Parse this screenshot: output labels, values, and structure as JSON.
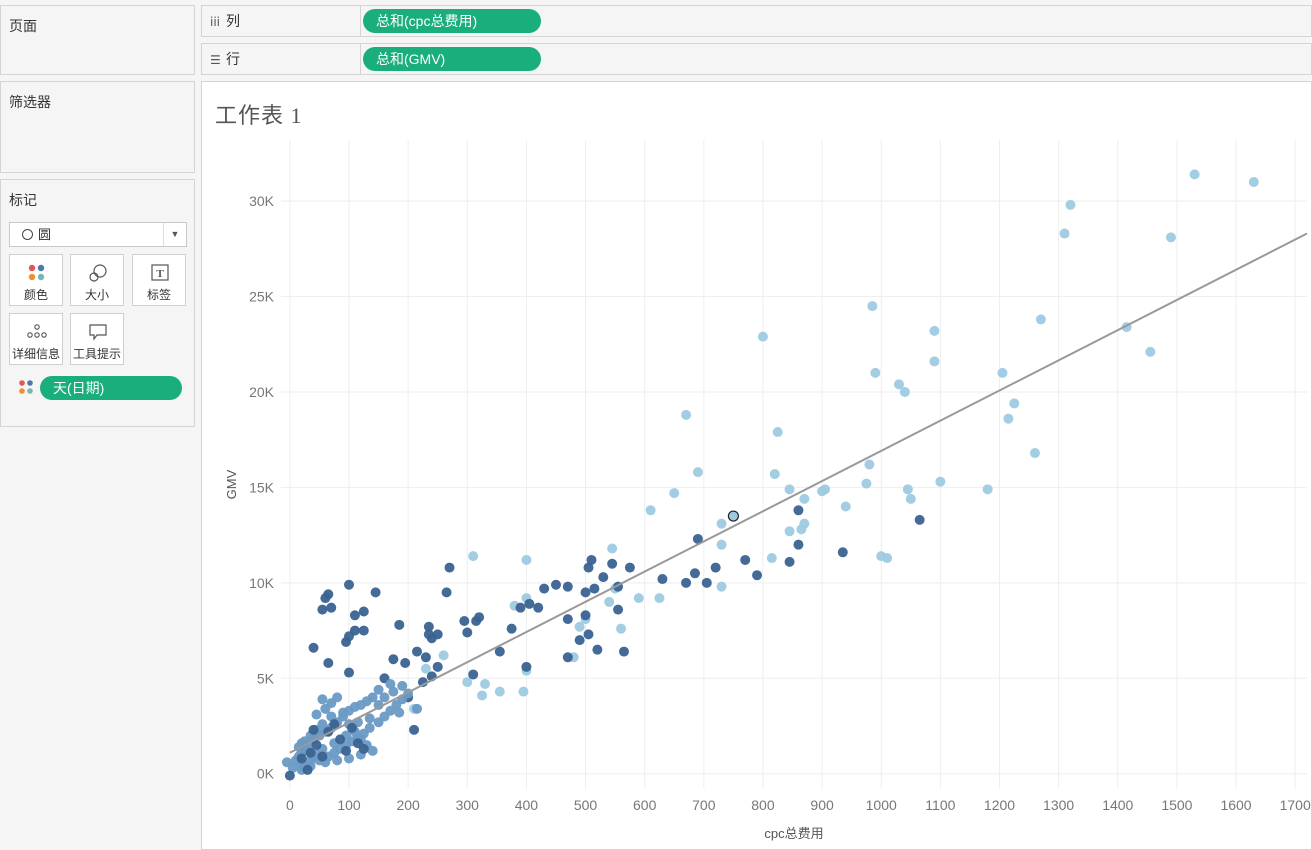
{
  "pages_panel": {
    "title": "页面"
  },
  "filters_panel": {
    "title": "筛选器"
  },
  "marks_panel": {
    "title": "标记",
    "mark_type": "圆",
    "buttons": {
      "color": "颜色",
      "size": "大小",
      "label": "标签",
      "detail": "详细信息",
      "tooltip": "工具提示"
    },
    "color_field": "天(日期)"
  },
  "shelves": {
    "columns": {
      "label": "列",
      "icon": "iii",
      "pill": "总和(cpc总费用)"
    },
    "rows": {
      "label": "行",
      "icon": "☰",
      "pill": "总和(GMV)"
    }
  },
  "sheet": {
    "title": "工作表 1"
  },
  "colors": {
    "pill": "#1aae7c",
    "trend": "#999999",
    "dark": "#3a6391",
    "mid": "#6a9ac4",
    "light": "#9ecae1"
  },
  "chart_data": {
    "type": "scatter",
    "xlabel": "cpc总费用",
    "ylabel": "GMV",
    "xlim": [
      -15,
      1720
    ],
    "ylim": [
      -800,
      33200
    ],
    "x_ticks": [
      0,
      100,
      200,
      300,
      400,
      500,
      600,
      700,
      800,
      900,
      1000,
      1100,
      1200,
      1300,
      1400,
      1500,
      1600,
      1700
    ],
    "x_tick_labels": [
      "0",
      "100",
      "200",
      "300",
      "400",
      "500",
      "600",
      "700",
      "800",
      "900",
      "1000",
      "1100",
      "1200",
      "1300",
      "1400",
      "1500",
      "1600",
      "1700"
    ],
    "y_ticks": [
      0,
      5000,
      10000,
      15000,
      20000,
      25000,
      30000
    ],
    "y_tick_labels": [
      "0K",
      "5K",
      "10K",
      "15K",
      "20K",
      "25K",
      "30K"
    ],
    "grid": true,
    "trend_line": {
      "x1": 0,
      "y1": 1100,
      "x2": 1720,
      "y2": 28300
    },
    "highlighted_point": [
      750,
      13500
    ],
    "points": [
      [
        1630,
        31000,
        "l"
      ],
      [
        1530,
        31400,
        "l"
      ],
      [
        1320,
        29800,
        "l"
      ],
      [
        1310,
        28300,
        "l"
      ],
      [
        1490,
        28100,
        "l"
      ],
      [
        1415,
        23400,
        "l"
      ],
      [
        1455,
        22100,
        "l"
      ],
      [
        1270,
        23800,
        "l"
      ],
      [
        985,
        24500,
        "l"
      ],
      [
        1090,
        23200,
        "l"
      ],
      [
        1090,
        21600,
        "l"
      ],
      [
        990,
        21000,
        "l"
      ],
      [
        1205,
        21000,
        "l"
      ],
      [
        1030,
        20400,
        "l"
      ],
      [
        1040,
        20000,
        "l"
      ],
      [
        1225,
        19400,
        "l"
      ],
      [
        1215,
        18600,
        "l"
      ],
      [
        1260,
        16800,
        "l"
      ],
      [
        980,
        16200,
        "l"
      ],
      [
        975,
        15200,
        "l"
      ],
      [
        1100,
        15300,
        "l"
      ],
      [
        1045,
        14900,
        "l"
      ],
      [
        1050,
        14400,
        "l"
      ],
      [
        1180,
        14900,
        "l"
      ],
      [
        905,
        14900,
        "l"
      ],
      [
        900,
        14800,
        "l"
      ],
      [
        940,
        14000,
        "l"
      ],
      [
        1000,
        11400,
        "l"
      ],
      [
        1010,
        11300,
        "l"
      ],
      [
        800,
        22900,
        "l"
      ],
      [
        670,
        18800,
        "l"
      ],
      [
        825,
        17900,
        "l"
      ],
      [
        690,
        15800,
        "l"
      ],
      [
        650,
        14700,
        "l"
      ],
      [
        820,
        15700,
        "l"
      ],
      [
        845,
        14900,
        "l"
      ],
      [
        870,
        14400,
        "l"
      ],
      [
        610,
        13800,
        "l"
      ],
      [
        730,
        13100,
        "l"
      ],
      [
        870,
        13100,
        "l"
      ],
      [
        865,
        12800,
        "l"
      ],
      [
        845,
        12700,
        "l"
      ],
      [
        730,
        12000,
        "l"
      ],
      [
        815,
        11300,
        "l"
      ],
      [
        545,
        11800,
        "l"
      ],
      [
        400,
        11200,
        "l"
      ],
      [
        310,
        11400,
        "l"
      ],
      [
        550,
        9700,
        "l"
      ],
      [
        590,
        9200,
        "l"
      ],
      [
        625,
        9200,
        "l"
      ],
      [
        730,
        9800,
        "l"
      ],
      [
        400,
        9200,
        "l"
      ],
      [
        380,
        8800,
        "l"
      ],
      [
        540,
        9000,
        "l"
      ],
      [
        500,
        8100,
        "l"
      ],
      [
        490,
        7700,
        "l"
      ],
      [
        560,
        7600,
        "l"
      ],
      [
        400,
        5400,
        "l"
      ],
      [
        330,
        4700,
        "l"
      ],
      [
        300,
        4800,
        "l"
      ],
      [
        325,
        4100,
        "l"
      ],
      [
        355,
        4300,
        "l"
      ],
      [
        395,
        4300,
        "l"
      ],
      [
        480,
        6100,
        "l"
      ],
      [
        260,
        6200,
        "l"
      ],
      [
        210,
        3400,
        "l"
      ],
      [
        230,
        5500,
        "l"
      ],
      [
        1065,
        13300,
        "d"
      ],
      [
        860,
        13800,
        "d"
      ],
      [
        935,
        11600,
        "d"
      ],
      [
        860,
        12000,
        "d"
      ],
      [
        845,
        11100,
        "d"
      ],
      [
        770,
        11200,
        "d"
      ],
      [
        790,
        10400,
        "d"
      ],
      [
        690,
        12300,
        "d"
      ],
      [
        720,
        10800,
        "d"
      ],
      [
        685,
        10500,
        "d"
      ],
      [
        705,
        10000,
        "d"
      ],
      [
        670,
        10000,
        "d"
      ],
      [
        630,
        10200,
        "d"
      ],
      [
        575,
        10800,
        "d"
      ],
      [
        545,
        11000,
        "d"
      ],
      [
        510,
        11200,
        "d"
      ],
      [
        505,
        10800,
        "d"
      ],
      [
        530,
        10300,
        "d"
      ],
      [
        555,
        9800,
        "d"
      ],
      [
        515,
        9700,
        "d"
      ],
      [
        500,
        9500,
        "d"
      ],
      [
        470,
        9800,
        "d"
      ],
      [
        450,
        9900,
        "d"
      ],
      [
        430,
        9700,
        "d"
      ],
      [
        405,
        8900,
        "d"
      ],
      [
        390,
        8700,
        "d"
      ],
      [
        375,
        7600,
        "d"
      ],
      [
        320,
        8200,
        "d"
      ],
      [
        315,
        8000,
        "d"
      ],
      [
        295,
        8000,
        "d"
      ],
      [
        270,
        10800,
        "d"
      ],
      [
        265,
        9500,
        "d"
      ],
      [
        145,
        9500,
        "d"
      ],
      [
        100,
        9900,
        "d"
      ],
      [
        65,
        9400,
        "d"
      ],
      [
        60,
        9200,
        "d"
      ],
      [
        70,
        8700,
        "d"
      ],
      [
        55,
        8600,
        "d"
      ],
      [
        125,
        8500,
        "d"
      ],
      [
        110,
        8300,
        "d"
      ],
      [
        185,
        7800,
        "d"
      ],
      [
        125,
        7500,
        "d"
      ],
      [
        110,
        7500,
        "d"
      ],
      [
        100,
        7200,
        "d"
      ],
      [
        95,
        6900,
        "d"
      ],
      [
        40,
        6600,
        "d"
      ],
      [
        235,
        7700,
        "d"
      ],
      [
        235,
        7300,
        "d"
      ],
      [
        250,
        7300,
        "d"
      ],
      [
        240,
        7100,
        "d"
      ],
      [
        215,
        6400,
        "d"
      ],
      [
        230,
        6100,
        "d"
      ],
      [
        175,
        6000,
        "d"
      ],
      [
        195,
        5800,
        "d"
      ],
      [
        250,
        5600,
        "d"
      ],
      [
        240,
        5100,
        "d"
      ],
      [
        225,
        4800,
        "d"
      ],
      [
        200,
        4000,
        "d"
      ],
      [
        210,
        2300,
        "d"
      ],
      [
        160,
        5000,
        "d"
      ],
      [
        100,
        5300,
        "d"
      ],
      [
        65,
        5800,
        "d"
      ],
      [
        310,
        5200,
        "d"
      ],
      [
        355,
        6400,
        "d"
      ],
      [
        400,
        5600,
        "d"
      ],
      [
        470,
        6100,
        "d"
      ],
      [
        520,
        6500,
        "d"
      ],
      [
        565,
        6400,
        "d"
      ],
      [
        490,
        7000,
        "d"
      ],
      [
        505,
        7300,
        "d"
      ],
      [
        470,
        8100,
        "d"
      ],
      [
        500,
        8300,
        "d"
      ],
      [
        555,
        8600,
        "d"
      ],
      [
        420,
        8700,
        "d"
      ],
      [
        300,
        7400,
        "d"
      ],
      [
        140,
        4000,
        "m"
      ],
      [
        120,
        3600,
        "m"
      ],
      [
        100,
        3300,
        "m"
      ],
      [
        90,
        3000,
        "m"
      ],
      [
        80,
        2700,
        "m"
      ],
      [
        70,
        2400,
        "m"
      ],
      [
        60,
        2200,
        "m"
      ],
      [
        50,
        2000,
        "m"
      ],
      [
        40,
        1800,
        "m"
      ],
      [
        30,
        1500,
        "m"
      ],
      [
        25,
        1300,
        "m"
      ],
      [
        20,
        1100,
        "m"
      ],
      [
        15,
        900,
        "m"
      ],
      [
        10,
        700,
        "m"
      ],
      [
        20,
        500,
        "m"
      ],
      [
        35,
        400,
        "m"
      ],
      [
        50,
        700,
        "m"
      ],
      [
        65,
        900,
        "m"
      ],
      [
        75,
        1100,
        "m"
      ],
      [
        85,
        1300,
        "m"
      ],
      [
        95,
        1500,
        "m"
      ],
      [
        105,
        1700,
        "m"
      ],
      [
        115,
        1900,
        "m"
      ],
      [
        125,
        2100,
        "m"
      ],
      [
        135,
        2400,
        "m"
      ],
      [
        150,
        2700,
        "m"
      ],
      [
        160,
        3000,
        "m"
      ],
      [
        170,
        3300,
        "m"
      ],
      [
        180,
        3600,
        "m"
      ],
      [
        190,
        3900,
        "m"
      ],
      [
        200,
        4200,
        "m"
      ],
      [
        160,
        4000,
        "m"
      ],
      [
        175,
        4300,
        "m"
      ],
      [
        190,
        4600,
        "m"
      ],
      [
        170,
        4700,
        "m"
      ],
      [
        150,
        4400,
        "m"
      ],
      [
        130,
        3800,
        "m"
      ],
      [
        110,
        3500,
        "m"
      ],
      [
        90,
        3200,
        "m"
      ],
      [
        70,
        3000,
        "m"
      ],
      [
        55,
        2600,
        "m"
      ],
      [
        45,
        2300,
        "m"
      ],
      [
        35,
        2000,
        "m"
      ],
      [
        25,
        1700,
        "m"
      ],
      [
        15,
        1400,
        "m"
      ],
      [
        60,
        3400,
        "m"
      ],
      [
        70,
        3700,
        "m"
      ],
      [
        80,
        4000,
        "m"
      ],
      [
        55,
        3900,
        "m"
      ],
      [
        45,
        3100,
        "m"
      ],
      [
        100,
        2600,
        "m"
      ],
      [
        110,
        2200,
        "m"
      ],
      [
        120,
        1800,
        "m"
      ],
      [
        130,
        1500,
        "m"
      ],
      [
        140,
        1200,
        "m"
      ],
      [
        120,
        1000,
        "m"
      ],
      [
        100,
        800,
        "m"
      ],
      [
        80,
        700,
        "m"
      ],
      [
        60,
        600,
        "m"
      ],
      [
        40,
        900,
        "m"
      ],
      [
        30,
        1200,
        "m"
      ],
      [
        20,
        200,
        "m"
      ],
      [
        5,
        300,
        "m"
      ],
      [
        -5,
        600,
        "m"
      ],
      [
        20,
        1600,
        "m"
      ],
      [
        215,
        3400,
        "m"
      ],
      [
        185,
        3200,
        "m"
      ],
      [
        150,
        3600,
        "m"
      ],
      [
        135,
        2900,
        "m"
      ],
      [
        115,
        2700,
        "m"
      ],
      [
        95,
        2000,
        "m"
      ],
      [
        75,
        1600,
        "m"
      ],
      [
        55,
        1300,
        "m"
      ],
      [
        45,
        1000,
        "m"
      ],
      [
        35,
        700,
        "m"
      ],
      [
        25,
        400,
        "m"
      ],
      [
        65,
        2200,
        "d"
      ],
      [
        85,
        1800,
        "d"
      ],
      [
        105,
        2400,
        "d"
      ],
      [
        45,
        1500,
        "d"
      ],
      [
        95,
        1200,
        "d"
      ],
      [
        35,
        1100,
        "d"
      ],
      [
        75,
        2600,
        "d"
      ],
      [
        115,
        1600,
        "d"
      ],
      [
        125,
        1300,
        "d"
      ],
      [
        55,
        900,
        "d"
      ],
      [
        20,
        800,
        "d"
      ],
      [
        0,
        -100,
        "d"
      ],
      [
        30,
        200,
        "d"
      ],
      [
        40,
        2300,
        "d"
      ]
    ]
  }
}
